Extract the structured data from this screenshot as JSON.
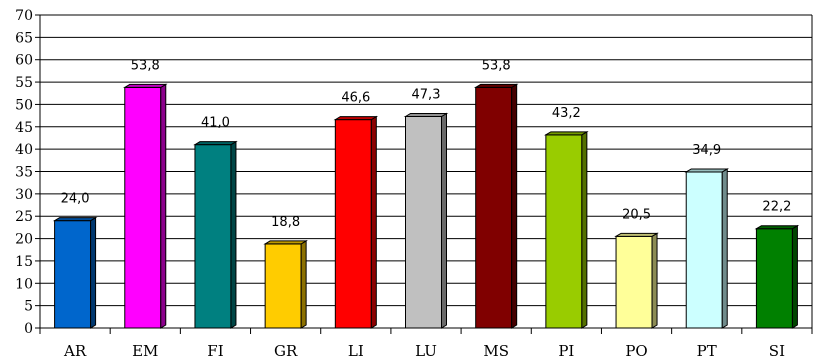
{
  "chart_data": {
    "type": "bar",
    "style": "3d-column",
    "categories": [
      "AR",
      "EM",
      "FI",
      "GR",
      "LI",
      "LU",
      "MS",
      "PI",
      "PO",
      "PT",
      "SI"
    ],
    "values": [
      24.0,
      53.8,
      41.0,
      18.8,
      46.6,
      47.3,
      53.8,
      43.2,
      20.5,
      34.9,
      22.2
    ],
    "value_labels": [
      "24,0",
      "53,8",
      "41,0",
      "18,8",
      "46,6",
      "47,3",
      "53,8",
      "43,2",
      "20,5",
      "34,9",
      "22,2"
    ],
    "colors": [
      "#0066CC",
      "#FF00FF",
      "#008080",
      "#FFCC00",
      "#FF0000",
      "#C0C0C0",
      "#800000",
      "#99CC00",
      "#FFFF99",
      "#CCFFFF",
      "#008000"
    ],
    "y_ticks": [
      0,
      5,
      10,
      15,
      20,
      25,
      30,
      35,
      40,
      45,
      50,
      55,
      60,
      65,
      70
    ],
    "ylim": [
      0,
      70
    ],
    "grid": true,
    "title": "",
    "xlabel": "",
    "ylabel": ""
  }
}
